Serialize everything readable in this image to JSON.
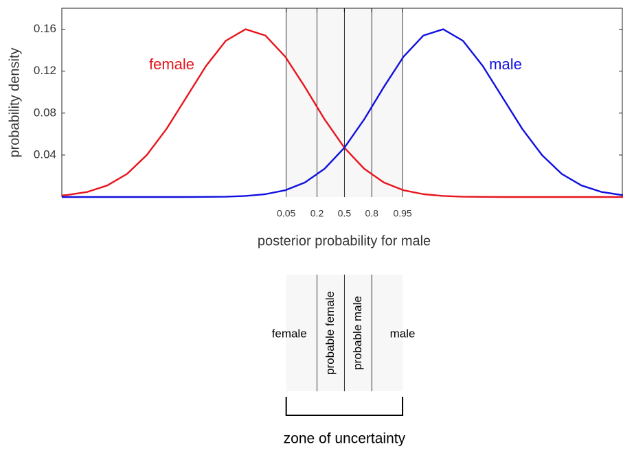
{
  "chart_data": {
    "type": "line",
    "x_label": "posterior probability for male",
    "y_label": "probability density",
    "x_scale": "logit",
    "x": [
      -14.3,
      -14,
      -13,
      -12,
      -11,
      -10,
      -9,
      -8,
      -7,
      -6,
      -5,
      -4,
      -3,
      -2,
      -1,
      0,
      1,
      2,
      3,
      4,
      5,
      6,
      7,
      8,
      9,
      10,
      11,
      12,
      13,
      14,
      14.1
    ],
    "series": [
      {
        "name": "female",
        "color": "#e8141c",
        "values": [
          0.0015,
          0.002,
          0.0049,
          0.011,
          0.022,
          0.04,
          0.065,
          0.095,
          0.125,
          0.149,
          0.16,
          0.154,
          0.134,
          0.105,
          0.074,
          0.047,
          0.027,
          0.0138,
          0.0064,
          0.0027,
          0.001,
          0.0003,
          0.0001,
          0,
          0,
          0,
          0,
          0,
          0,
          0,
          0
        ]
      },
      {
        "name": "male",
        "color": "#1010e0",
        "values": [
          0,
          0,
          0,
          0,
          0,
          0,
          0,
          0,
          0.0001,
          0.0003,
          0.001,
          0.0027,
          0.0064,
          0.0138,
          0.027,
          0.047,
          0.074,
          0.105,
          0.134,
          0.154,
          0.16,
          0.149,
          0.125,
          0.095,
          0.065,
          0.04,
          0.022,
          0.011,
          0.0049,
          0.002,
          0.0018
        ]
      }
    ],
    "xlim": [
      -14.3,
      14.1
    ],
    "ylim": [
      0,
      0.18
    ],
    "xticks": [
      {
        "value": -2.944,
        "label": "0.05"
      },
      {
        "value": -1.386,
        "label": "0.2"
      },
      {
        "value": 0,
        "label": "0.5"
      },
      {
        "value": 1.386,
        "label": "0.8"
      },
      {
        "value": 2.944,
        "label": "0.95"
      }
    ],
    "yticks": [
      0.04,
      0.08,
      0.12,
      0.16
    ],
    "zones": [
      "female",
      "probable female",
      "probable male",
      "male"
    ],
    "zone_caption": "zone of uncertainty"
  }
}
